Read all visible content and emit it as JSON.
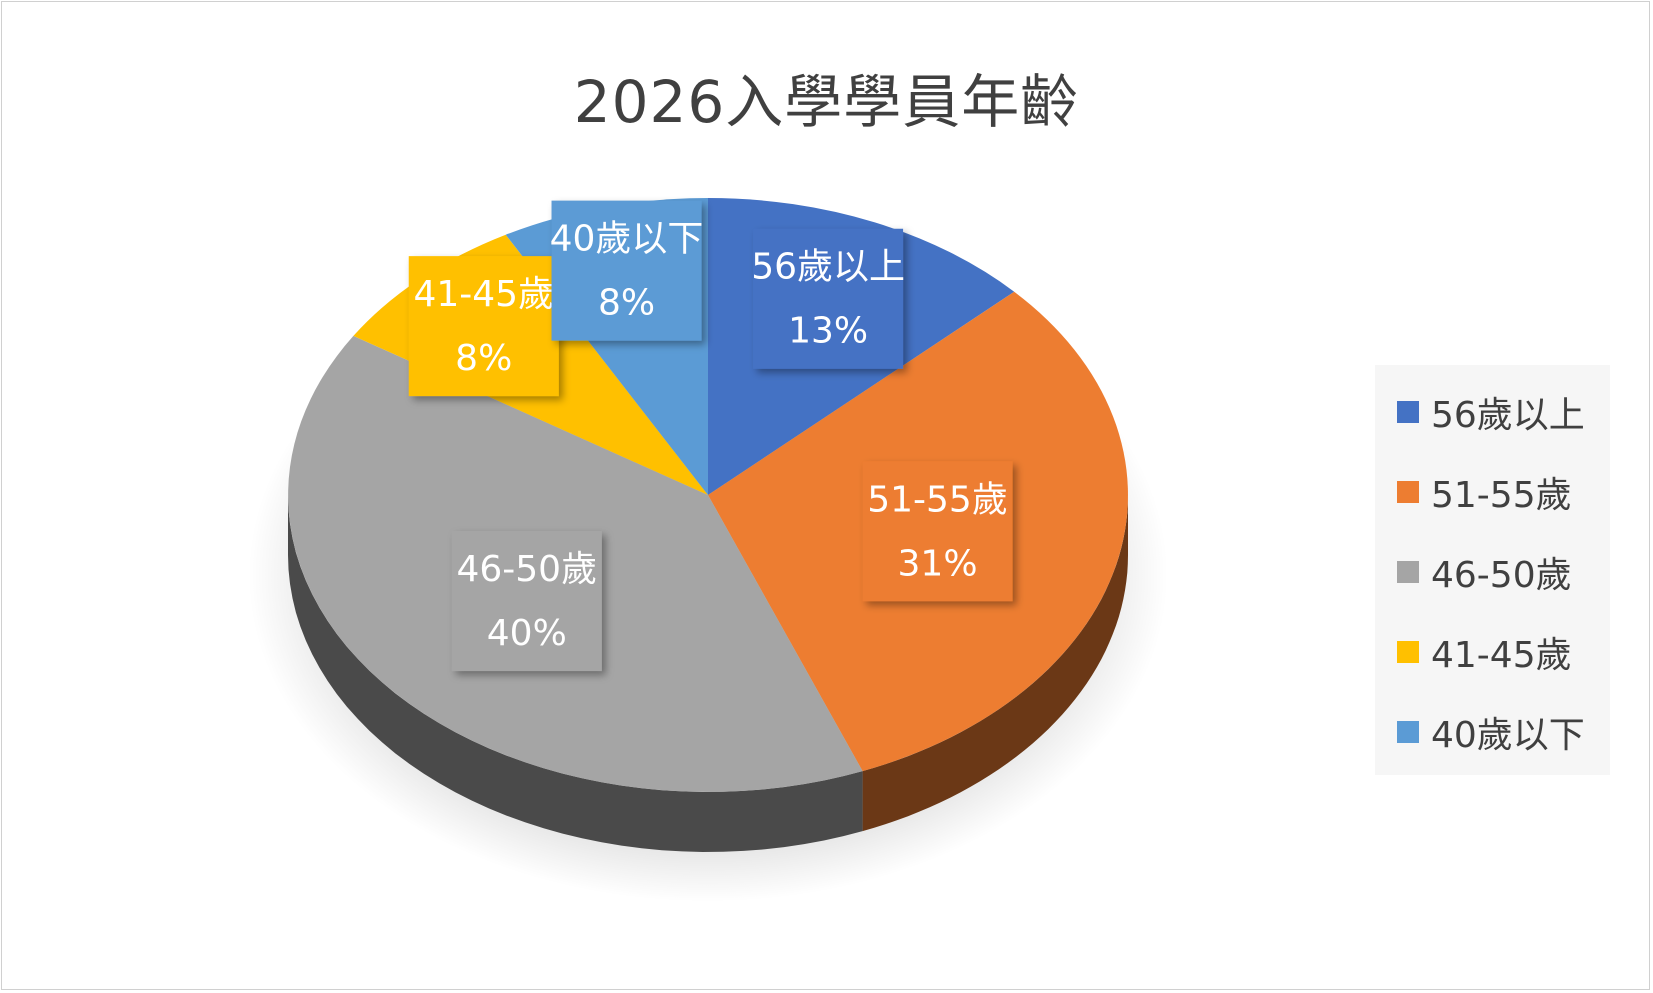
{
  "chart_data": {
    "type": "pie",
    "title": "2026入學學員年齡",
    "slices": [
      {
        "label": "56歲以上",
        "value": 13,
        "value_label": "13%",
        "color": "#4472C4"
      },
      {
        "label": "51-55歲",
        "value": 31,
        "value_label": "31%",
        "color": "#ED7D31"
      },
      {
        "label": "46-50歲",
        "value": 40,
        "value_label": "40%",
        "color": "#A5A5A5"
      },
      {
        "label": "41-45歲",
        "value": 8,
        "value_label": "8%",
        "color": "#FFC000"
      },
      {
        "label": "40歲以下",
        "value": 8,
        "value_label": "8%",
        "color": "#5B9BD5"
      }
    ],
    "legend_position": "right",
    "style": "3d-pie"
  }
}
